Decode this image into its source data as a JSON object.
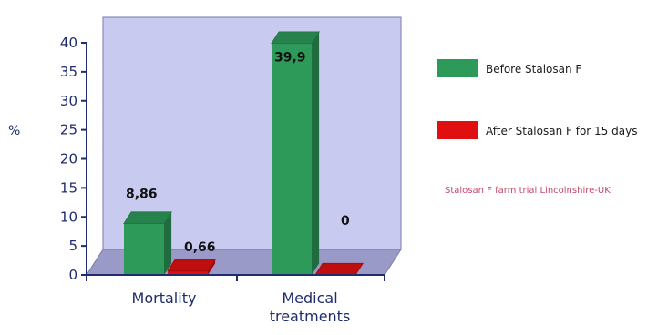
{
  "chart_data": {
    "type": "bar",
    "categories": [
      "Mortality",
      "Medical treatments"
    ],
    "category_lines": [
      [
        "Mortality"
      ],
      [
        "Medical",
        "treatments"
      ]
    ],
    "series": [
      {
        "name": "Before Stalosan F",
        "values": [
          8.86,
          39.9
        ],
        "labels": [
          "8,86",
          "39,9"
        ],
        "color": "#2e9a5a"
      },
      {
        "name": "After Stalosan F for 15 days",
        "values": [
          0.66,
          0
        ],
        "labels": [
          "0,66",
          "0"
        ],
        "color": "#e01010"
      }
    ],
    "ylabel": "%",
    "ylim": [
      0,
      40
    ],
    "yticks": [
      0,
      5,
      10,
      15,
      20,
      25,
      30,
      35,
      40
    ],
    "grid": false,
    "legend_position": "right",
    "annotation": "Stalosan F farm trial Lincolnshire-UK",
    "colors": {
      "wall": "#c9caf0",
      "floor": "#9a9ac8",
      "axis": "#1f2d6e"
    }
  }
}
